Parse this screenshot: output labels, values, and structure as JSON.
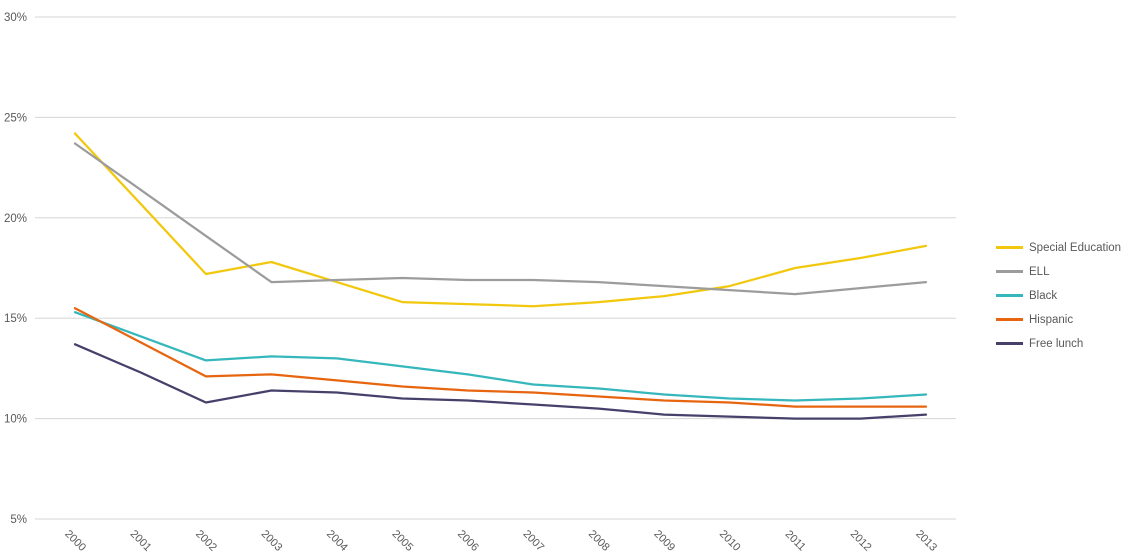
{
  "chart_data": {
    "type": "line",
    "title": "",
    "xlabel": "",
    "ylabel": "",
    "x": [
      2000,
      2001,
      2002,
      2003,
      2004,
      2005,
      2006,
      2007,
      2008,
      2009,
      2010,
      2011,
      2012,
      2013
    ],
    "x_tick_labels": [
      "2000",
      "2001",
      "2002",
      "2003",
      "2004",
      "2005",
      "2006",
      "2007",
      "2008",
      "2009",
      "2010",
      "2011",
      "2012",
      "2013"
    ],
    "y_axis": {
      "min": 5,
      "max": 30,
      "unit": "%",
      "tick_values": [
        30,
        25,
        20,
        15,
        10,
        5
      ],
      "tick_labels": [
        "30%",
        "25%",
        "20%",
        "15%",
        "10%",
        "5%"
      ]
    },
    "grid": true,
    "legend_position": "right",
    "series": [
      {
        "name": "Special Education",
        "color": "#F2C80F",
        "values": [
          24.2,
          20.7,
          17.2,
          17.8,
          16.8,
          15.8,
          15.7,
          15.6,
          15.8,
          16.1,
          16.6,
          17.5,
          18.0,
          18.6
        ]
      },
      {
        "name": "ELL",
        "color": "#9C9C9C",
        "values": [
          23.7,
          21.4,
          19.1,
          16.8,
          16.9,
          17.0,
          16.9,
          16.9,
          16.8,
          16.6,
          16.4,
          16.2,
          16.5,
          16.8
        ]
      },
      {
        "name": "Black",
        "color": "#35B7BC",
        "values": [
          15.3,
          14.1,
          12.9,
          13.1,
          13.0,
          12.6,
          12.2,
          11.7,
          11.5,
          11.2,
          11.0,
          10.9,
          11.0,
          11.2
        ]
      },
      {
        "name": "Hispanic",
        "color": "#E7650F",
        "values": [
          15.5,
          13.8,
          12.1,
          12.2,
          11.9,
          11.6,
          11.4,
          11.3,
          11.1,
          10.9,
          10.8,
          10.6,
          10.6,
          10.6
        ]
      },
      {
        "name": "Free lunch",
        "color": "#45416B",
        "values": [
          13.7,
          12.3,
          10.8,
          11.4,
          11.3,
          11.0,
          10.9,
          10.7,
          10.5,
          10.2,
          10.1,
          10.0,
          10.0,
          10.2
        ]
      }
    ]
  },
  "colors": {
    "background": "#FFFFFF",
    "axis_text": "#595959",
    "gridline": "#D5D5D5"
  }
}
